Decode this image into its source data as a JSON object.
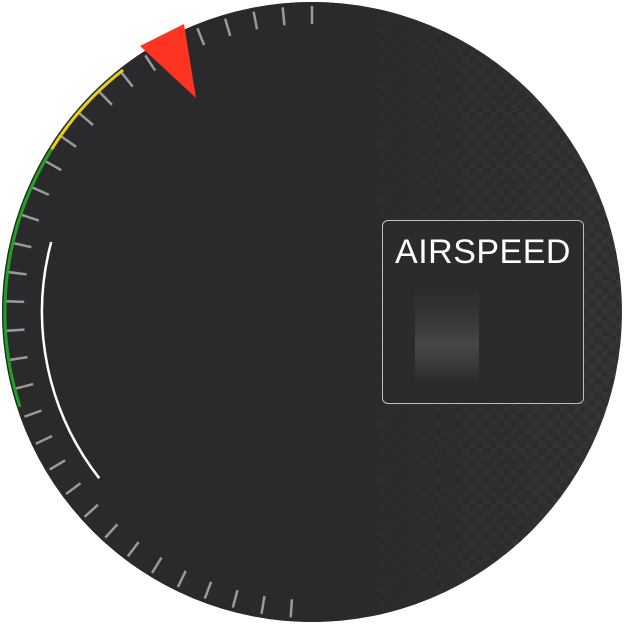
{
  "instrument": {
    "label": "AIRSPEED"
  },
  "colors": {
    "face": "#2a2a2d",
    "tick": "#9a9a9a",
    "bug": "#ff3322",
    "green_arc": "#23a023",
    "yellow_arc": "#e6d21a",
    "white_arc": "#ffffff",
    "box_border": "#bdbdbd"
  },
  "icons": {
    "bug": "speed-bug-icon"
  }
}
